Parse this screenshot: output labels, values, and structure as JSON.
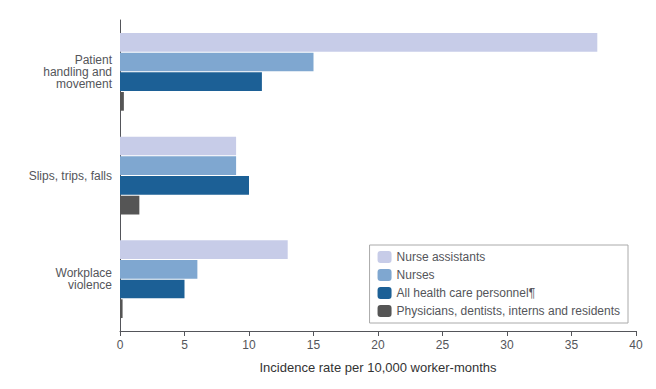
{
  "chart_data": {
    "type": "bar",
    "orientation": "horizontal",
    "categories": [
      "Workplace\nviolence",
      "Slips, trips, falls",
      "Patient\nhandling and\nmovement"
    ],
    "series": [
      {
        "name": "Nurse assistants",
        "color": "#c7cce8",
        "values": [
          13.0,
          9.0,
          37.0
        ]
      },
      {
        "name": "Nurses",
        "color": "#7fa7d0",
        "values": [
          6.0,
          9.0,
          15.0
        ]
      },
      {
        "name": "All health care personnel¶",
        "color": "#1c6096",
        "values": [
          5.0,
          10.0,
          11.0
        ]
      },
      {
        "name": "Physicians, dentists, interns and residents",
        "color": "#555555",
        "values": [
          0.2,
          1.5,
          0.3
        ]
      }
    ],
    "xlabel": "Incidence rate per 10,000 worker-months",
    "xlim": [
      0,
      40
    ],
    "xticks": [
      0,
      5,
      10,
      15,
      20,
      25,
      30,
      35,
      40
    ],
    "grid": false,
    "legend": "lower right"
  }
}
